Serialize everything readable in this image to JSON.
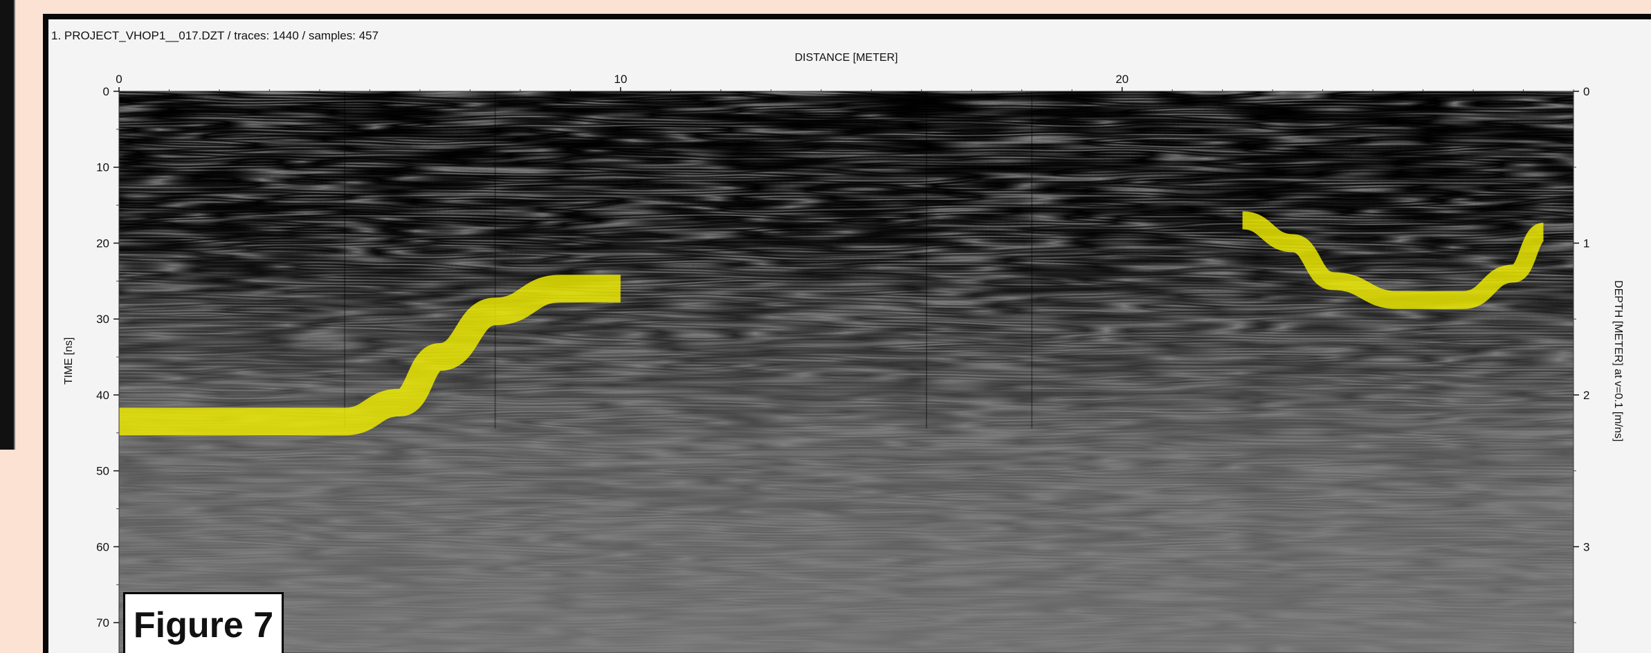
{
  "window": {
    "file_info": "1. PROJECT_VHOP1__017.DZT / traces: 1440 / samples: 457"
  },
  "chart_data": {
    "type": "heatmap",
    "title": "1. PROJECT_VHOP1__017.DZT / traces: 1440 / samples: 457",
    "xlabel": "DISTANCE [METER]",
    "ylabel": "TIME [ns]",
    "y2label": "DEPTH [METER] at v=0.1 [m/ns]",
    "xlim": [
      0,
      29
    ],
    "ylim": [
      0,
      74
    ],
    "y2lim": [
      0,
      3.7
    ],
    "x_ticks": [
      0,
      10,
      20
    ],
    "y_ticks": [
      0,
      10,
      20,
      30,
      40,
      50,
      60,
      70
    ],
    "y2_ticks": [
      0,
      1,
      2,
      3
    ],
    "colormap": [
      "#000000",
      "#808080",
      "#ffffff"
    ],
    "highlight_color": "#f2ee00",
    "highlights": [
      {
        "name": "",
        "points": [
          [
            0,
            43.5
          ],
          [
            4.5,
            43.5
          ],
          [
            5.6,
            41
          ],
          [
            6.4,
            35
          ],
          [
            7.5,
            29
          ],
          [
            8.8,
            26
          ],
          [
            10,
            26
          ]
        ]
      },
      {
        "name": "",
        "points": [
          [
            22.4,
            17
          ],
          [
            23.4,
            20
          ],
          [
            24.2,
            25
          ],
          [
            25.5,
            27.5
          ],
          [
            26.8,
            27.5
          ],
          [
            27.8,
            24
          ],
          [
            28.4,
            18.5
          ]
        ]
      }
    ]
  },
  "figure_label": "Figure 7"
}
